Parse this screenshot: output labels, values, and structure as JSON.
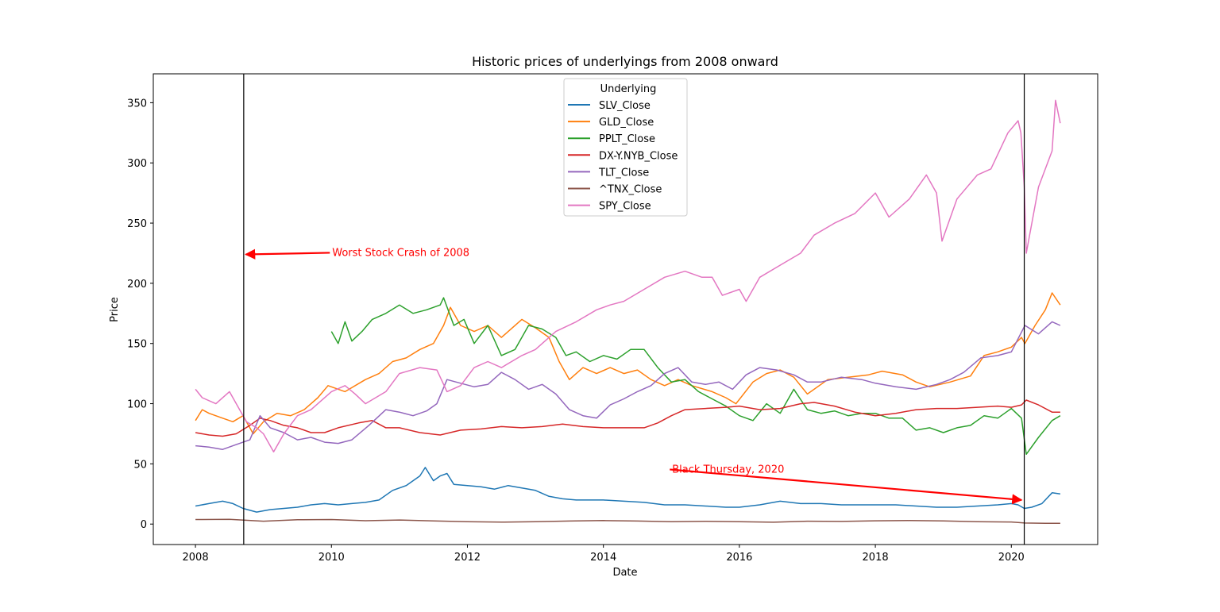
{
  "chart_data": {
    "type": "line",
    "title": "Historic prices of underlyings from 2008 onward",
    "xlabel": "Date",
    "ylabel": "Price",
    "xlim": [
      2007.38,
      2021.27
    ],
    "ylim": [
      -17,
      374
    ],
    "x_ticks": [
      2008,
      2010,
      2012,
      2014,
      2016,
      2018,
      2020
    ],
    "x_tick_labels": [
      "2008",
      "2010",
      "2012",
      "2014",
      "2016",
      "2018",
      "2020"
    ],
    "y_ticks": [
      0,
      50,
      100,
      150,
      200,
      250,
      300,
      350
    ],
    "y_tick_labels": [
      "0",
      "50",
      "100",
      "150",
      "200",
      "250",
      "300",
      "350"
    ],
    "grid": false,
    "legend": {
      "title": "Underlying",
      "placement": "upper-center"
    },
    "vlines": [
      2008.71,
      2020.19
    ],
    "annotations": [
      {
        "text": "Worst Stock Crash of 2008",
        "x_text": 2010.0,
        "y_text": 226,
        "x_arrow": 2008.74,
        "y_arrow": 224,
        "color": "#ff0000"
      },
      {
        "text": "Black Thursday, 2020",
        "x_text": 2015.0,
        "y_text": 46,
        "x_arrow": 2020.15,
        "y_arrow": 20,
        "color": "#ff0000"
      }
    ],
    "series": [
      {
        "name": "SLV_Close",
        "color": "#1f77b4",
        "x": [
          2008.0,
          2008.2,
          2008.4,
          2008.55,
          2008.7,
          2008.9,
          2009.1,
          2009.3,
          2009.5,
          2009.7,
          2009.9,
          2010.1,
          2010.3,
          2010.5,
          2010.7,
          2010.9,
          2011.1,
          2011.3,
          2011.38,
          2011.5,
          2011.6,
          2011.7,
          2011.8,
          2012.0,
          2012.2,
          2012.4,
          2012.6,
          2012.8,
          2013.0,
          2013.2,
          2013.4,
          2013.6,
          2013.8,
          2014.0,
          2014.3,
          2014.6,
          2014.9,
          2015.2,
          2015.5,
          2015.8,
          2016.0,
          2016.3,
          2016.6,
          2016.9,
          2017.2,
          2017.5,
          2017.8,
          2018.0,
          2018.3,
          2018.6,
          2018.9,
          2019.2,
          2019.5,
          2019.8,
          2020.0,
          2020.1,
          2020.19,
          2020.3,
          2020.45,
          2020.6,
          2020.72
        ],
        "y": [
          15,
          17,
          19,
          17,
          13,
          10,
          12,
          13,
          14,
          16,
          17,
          16,
          17,
          18,
          20,
          28,
          32,
          40,
          47,
          36,
          40,
          42,
          33,
          32,
          31,
          29,
          32,
          30,
          28,
          23,
          21,
          20,
          20,
          20,
          19,
          18,
          16,
          16,
          15,
          14,
          14,
          16,
          19,
          17,
          17,
          16,
          16,
          16,
          16,
          15,
          14,
          14,
          15,
          16,
          17,
          16,
          13,
          14,
          17,
          26,
          25
        ]
      },
      {
        "name": "GLD_Close",
        "color": "#ff7f0e",
        "x": [
          2008.0,
          2008.1,
          2008.2,
          2008.4,
          2008.55,
          2008.7,
          2008.85,
          2009.0,
          2009.2,
          2009.4,
          2009.6,
          2009.8,
          2009.95,
          2010.2,
          2010.5,
          2010.7,
          2010.9,
          2011.1,
          2011.3,
          2011.5,
          2011.65,
          2011.75,
          2011.9,
          2012.1,
          2012.3,
          2012.5,
          2012.8,
          2013.0,
          2013.2,
          2013.35,
          2013.5,
          2013.7,
          2013.9,
          2014.1,
          2014.3,
          2014.5,
          2014.7,
          2014.9,
          2015.1,
          2015.3,
          2015.6,
          2015.8,
          2015.95,
          2016.2,
          2016.4,
          2016.6,
          2016.8,
          2017.0,
          2017.3,
          2017.6,
          2017.9,
          2018.1,
          2018.4,
          2018.6,
          2018.8,
          2019.1,
          2019.4,
          2019.6,
          2019.8,
          2020.0,
          2020.15,
          2020.2,
          2020.35,
          2020.5,
          2020.6,
          2020.72
        ],
        "y": [
          86,
          95,
          92,
          88,
          85,
          90,
          75,
          85,
          92,
          90,
          95,
          105,
          115,
          110,
          120,
          125,
          135,
          138,
          145,
          150,
          165,
          180,
          165,
          160,
          165,
          155,
          170,
          163,
          155,
          135,
          120,
          130,
          125,
          130,
          125,
          128,
          120,
          115,
          120,
          115,
          110,
          105,
          100,
          118,
          125,
          128,
          122,
          108,
          120,
          122,
          124,
          127,
          124,
          118,
          114,
          118,
          123,
          140,
          143,
          147,
          155,
          150,
          165,
          178,
          192,
          182
        ]
      },
      {
        "name": "PPLT_Close",
        "color": "#2ca02c",
        "x": [
          2010.0,
          2010.1,
          2010.2,
          2010.3,
          2010.45,
          2010.6,
          2010.8,
          2011.0,
          2011.2,
          2011.4,
          2011.6,
          2011.65,
          2011.8,
          2011.95,
          2012.1,
          2012.3,
          2012.5,
          2012.7,
          2012.9,
          2013.1,
          2013.3,
          2013.45,
          2013.6,
          2013.8,
          2014.0,
          2014.2,
          2014.4,
          2014.6,
          2014.8,
          2015.0,
          2015.2,
          2015.4,
          2015.6,
          2015.8,
          2016.0,
          2016.2,
          2016.4,
          2016.6,
          2016.8,
          2017.0,
          2017.2,
          2017.4,
          2017.6,
          2017.8,
          2018.0,
          2018.2,
          2018.4,
          2018.6,
          2018.8,
          2019.0,
          2019.2,
          2019.4,
          2019.6,
          2019.8,
          2020.0,
          2020.15,
          2020.22,
          2020.4,
          2020.6,
          2020.72
        ],
        "y": [
          160,
          150,
          168,
          152,
          160,
          170,
          175,
          182,
          175,
          178,
          182,
          188,
          165,
          170,
          150,
          165,
          140,
          145,
          165,
          162,
          155,
          140,
          143,
          135,
          140,
          137,
          145,
          145,
          130,
          118,
          120,
          110,
          104,
          98,
          90,
          86,
          100,
          92,
          112,
          95,
          92,
          94,
          90,
          92,
          92,
          88,
          88,
          78,
          80,
          76,
          80,
          82,
          90,
          88,
          96,
          88,
          58,
          72,
          86,
          90
        ]
      },
      {
        "name": "DX-Y.NYB_Close",
        "color": "#d62728",
        "x": [
          2008.0,
          2008.2,
          2008.4,
          2008.6,
          2008.8,
          2008.95,
          2009.1,
          2009.3,
          2009.5,
          2009.7,
          2009.9,
          2010.1,
          2010.4,
          2010.6,
          2010.8,
          2011.0,
          2011.3,
          2011.6,
          2011.9,
          2012.2,
          2012.5,
          2012.8,
          2013.1,
          2013.4,
          2013.7,
          2014.0,
          2014.3,
          2014.6,
          2014.8,
          2015.0,
          2015.2,
          2015.5,
          2015.8,
          2016.0,
          2016.3,
          2016.6,
          2016.9,
          2017.1,
          2017.4,
          2017.7,
          2018.0,
          2018.3,
          2018.6,
          2018.9,
          2019.2,
          2019.5,
          2019.8,
          2020.0,
          2020.15,
          2020.22,
          2020.4,
          2020.6,
          2020.72
        ],
        "y": [
          76,
          74,
          73,
          75,
          82,
          88,
          86,
          82,
          80,
          76,
          76,
          80,
          84,
          86,
          80,
          80,
          76,
          74,
          78,
          79,
          81,
          80,
          81,
          83,
          81,
          80,
          80,
          80,
          84,
          90,
          95,
          96,
          97,
          98,
          95,
          96,
          100,
          101,
          98,
          93,
          90,
          92,
          95,
          96,
          96,
          97,
          98,
          97,
          99,
          103,
          99,
          93,
          93
        ]
      },
      {
        "name": "TLT_Close",
        "color": "#9467bd",
        "x": [
          2008.0,
          2008.2,
          2008.4,
          2008.6,
          2008.8,
          2008.95,
          2009.1,
          2009.3,
          2009.5,
          2009.7,
          2009.9,
          2010.1,
          2010.3,
          2010.55,
          2010.8,
          2011.0,
          2011.2,
          2011.4,
          2011.55,
          2011.7,
          2011.9,
          2012.1,
          2012.3,
          2012.5,
          2012.7,
          2012.9,
          2013.1,
          2013.3,
          2013.5,
          2013.7,
          2013.9,
          2014.1,
          2014.3,
          2014.5,
          2014.7,
          2014.9,
          2015.1,
          2015.3,
          2015.5,
          2015.7,
          2015.9,
          2016.1,
          2016.3,
          2016.55,
          2016.8,
          2017.0,
          2017.2,
          2017.5,
          2017.8,
          2018.0,
          2018.3,
          2018.6,
          2018.9,
          2019.1,
          2019.3,
          2019.55,
          2019.8,
          2020.0,
          2020.2,
          2020.4,
          2020.6,
          2020.72
        ],
        "y": [
          65,
          64,
          62,
          66,
          70,
          90,
          80,
          76,
          70,
          72,
          68,
          67,
          70,
          82,
          95,
          93,
          90,
          94,
          100,
          120,
          117,
          114,
          116,
          126,
          120,
          112,
          116,
          108,
          95,
          90,
          88,
          99,
          104,
          110,
          115,
          125,
          130,
          118,
          116,
          118,
          112,
          124,
          130,
          128,
          124,
          118,
          118,
          122,
          120,
          117,
          114,
          112,
          116,
          120,
          126,
          138,
          140,
          143,
          165,
          158,
          168,
          165
        ]
      },
      {
        "name": "^TNX_Close",
        "color": "#8c564b",
        "x": [
          2008.0,
          2008.5,
          2009.0,
          2009.5,
          2010.0,
          2010.5,
          2011.0,
          2011.5,
          2012.0,
          2012.5,
          2013.0,
          2013.5,
          2014.0,
          2014.5,
          2015.0,
          2015.5,
          2016.0,
          2016.5,
          2017.0,
          2017.5,
          2018.0,
          2018.5,
          2019.0,
          2019.5,
          2020.0,
          2020.2,
          2020.5,
          2020.72
        ],
        "y": [
          3.8,
          4.0,
          2.4,
          3.6,
          3.8,
          2.8,
          3.4,
          2.6,
          2.0,
          1.6,
          1.9,
          2.5,
          2.9,
          2.5,
          2.0,
          2.3,
          1.9,
          1.5,
          2.4,
          2.2,
          2.7,
          2.9,
          2.6,
          2.0,
          1.7,
          0.9,
          0.6,
          0.7
        ]
      },
      {
        "name": "SPY_Close",
        "color": "#e377c2",
        "x": [
          2008.0,
          2008.1,
          2008.3,
          2008.5,
          2008.65,
          2008.75,
          2008.9,
          2009.0,
          2009.15,
          2009.3,
          2009.5,
          2009.7,
          2010.0,
          2010.2,
          2010.35,
          2010.5,
          2010.8,
          2011.0,
          2011.3,
          2011.55,
          2011.7,
          2011.9,
          2012.1,
          2012.3,
          2012.5,
          2012.8,
          2013.0,
          2013.3,
          2013.6,
          2013.9,
          2014.1,
          2014.3,
          2014.6,
          2014.9,
          2015.2,
          2015.45,
          2015.6,
          2015.75,
          2016.0,
          2016.1,
          2016.3,
          2016.6,
          2016.9,
          2017.1,
          2017.4,
          2017.7,
          2018.0,
          2018.05,
          2018.2,
          2018.5,
          2018.75,
          2018.9,
          2018.98,
          2019.2,
          2019.5,
          2019.7,
          2019.95,
          2020.1,
          2020.14,
          2020.19,
          2020.22,
          2020.4,
          2020.6,
          2020.65,
          2020.72
        ],
        "y": [
          112,
          105,
          100,
          110,
          95,
          85,
          80,
          75,
          60,
          75,
          90,
          95,
          110,
          115,
          108,
          100,
          110,
          125,
          130,
          128,
          110,
          115,
          130,
          135,
          130,
          140,
          145,
          160,
          168,
          178,
          182,
          185,
          195,
          205,
          210,
          205,
          205,
          190,
          195,
          185,
          205,
          215,
          225,
          240,
          250,
          258,
          275,
          270,
          255,
          270,
          290,
          275,
          235,
          270,
          290,
          295,
          325,
          335,
          325,
          280,
          225,
          280,
          310,
          352,
          333
        ]
      }
    ]
  }
}
